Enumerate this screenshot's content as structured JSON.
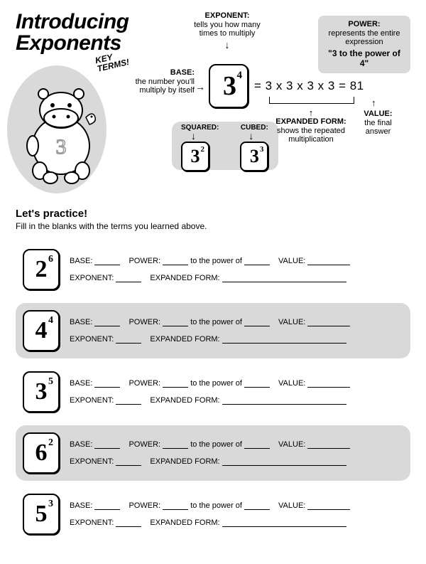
{
  "title": {
    "line1": "Introducing",
    "line2": "Exponents"
  },
  "keyTerms": "KEY\nTERMS!",
  "hippoNumber": "3",
  "defs": {
    "exponent": {
      "title": "EXPONENT:",
      "text": "tells you how many times to multiply"
    },
    "power": {
      "title": "POWER:",
      "text": "represents the entire expression",
      "quote": "\"3 to the power of 4\""
    },
    "base": {
      "title": "BASE:",
      "text": "the number you'll multiply by itself"
    },
    "expanded": {
      "title": "EXPANDED FORM:",
      "text": "shows the repeated multiplication"
    },
    "value": {
      "title": "VALUE:",
      "text": "the final answer"
    },
    "squared": "SQUARED:",
    "cubed": "CUBED:"
  },
  "mainExample": {
    "base": "3",
    "exp": "4",
    "expanded": "= 3 x 3 x 3 x 3 =",
    "value": "81"
  },
  "squaredEx": {
    "base": "3",
    "exp": "2"
  },
  "cubedEx": {
    "base": "3",
    "exp": "3"
  },
  "practice": {
    "title": "Let's practice!",
    "sub": "Fill in the blanks with the terms you learned above.",
    "labels": {
      "base": "BASE:",
      "power": "POWER:",
      "powerMid": "to the power of",
      "value": "VALUE:",
      "exponent": "EXPONENT:",
      "expanded": "EXPANDED FORM:"
    },
    "items": [
      {
        "base": "2",
        "exp": "6",
        "shaded": false
      },
      {
        "base": "4",
        "exp": "4",
        "shaded": true
      },
      {
        "base": "3",
        "exp": "5",
        "shaded": false
      },
      {
        "base": "6",
        "exp": "2",
        "shaded": true
      },
      {
        "base": "5",
        "exp": "3",
        "shaded": false
      }
    ]
  },
  "colors": {
    "shade": "#d9d9d9",
    "text": "#000000",
    "bg": "#ffffff"
  }
}
